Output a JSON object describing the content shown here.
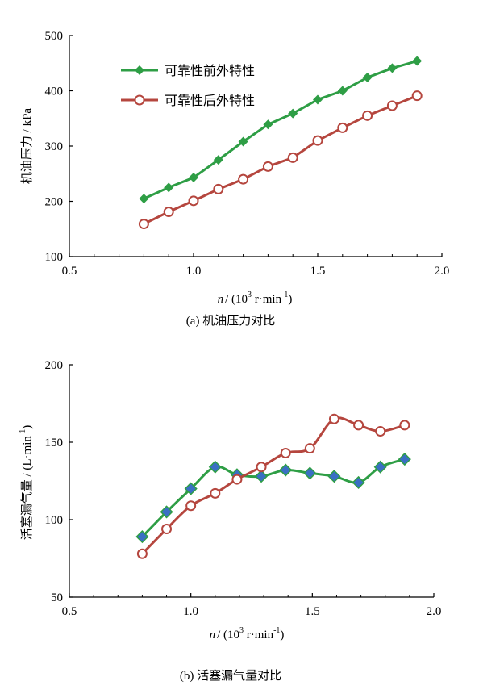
{
  "colors": {
    "green": "#2e9e45",
    "red": "#b5463e",
    "blue": "#3a6fc4"
  },
  "chart_data": [
    {
      "type": "line",
      "caption": "(a)  机油压力对比",
      "ylabel": "机油压力 / kPa",
      "xlabel": {
        "n": "n",
        "prefix": "/ (10",
        "sup1": "3",
        "mid": " r·min",
        "sup2": "-1",
        "suffix": ")"
      },
      "xlim": [
        0.5,
        2.0
      ],
      "ylim": [
        100,
        500
      ],
      "xticks": [
        0.5,
        1.0,
        1.5,
        2.0
      ],
      "xtick_labels": [
        "0.5",
        "1.0",
        "1.5",
        "2.0"
      ],
      "yticks": [
        100,
        200,
        300,
        400,
        500
      ],
      "ytick_labels": [
        "100",
        "200",
        "300",
        "400",
        "500"
      ],
      "legend_position": "top-left",
      "series": [
        {
          "name": "可靠性前外特性",
          "color": "#2e9e45",
          "marker": "filled-diamond",
          "smooth": false,
          "x": [
            0.8,
            0.9,
            1.0,
            1.1,
            1.2,
            1.3,
            1.4,
            1.5,
            1.6,
            1.7,
            1.8,
            1.9
          ],
          "y": [
            205,
            225,
            243,
            275,
            308,
            339,
            359,
            384,
            400,
            424,
            441,
            454
          ]
        },
        {
          "name": "可靠性后外特性",
          "color": "#b5463e",
          "marker": "open-circle",
          "smooth": false,
          "x": [
            0.8,
            0.9,
            1.0,
            1.1,
            1.2,
            1.3,
            1.4,
            1.5,
            1.6,
            1.7,
            1.8,
            1.9
          ],
          "y": [
            159,
            181,
            201,
            222,
            240,
            263,
            279,
            310,
            333,
            355,
            373,
            391
          ]
        }
      ]
    },
    {
      "type": "line",
      "caption": "(b)  活塞漏气量对比",
      "ylabel": {
        "main": "活塞漏气量 / (L·min",
        "sup": "-1",
        "suffix": ")"
      },
      "xlabel": {
        "n": "n",
        "prefix": "/ (10",
        "sup1": "3",
        "mid": " r·min",
        "sup2": "-1",
        "suffix": ")"
      },
      "xlim": [
        0.5,
        2.0
      ],
      "ylim": [
        50,
        200
      ],
      "xticks": [
        0.5,
        1.0,
        1.5,
        2.0
      ],
      "xtick_labels": [
        "0.5",
        "1.0",
        "1.5",
        "2.0"
      ],
      "yticks": [
        50,
        100,
        150,
        200
      ],
      "ytick_labels": [
        "50",
        "100",
        "150",
        "200"
      ],
      "series": [
        {
          "color": "#2e9e45",
          "marker": "blue-diamond",
          "smooth": true,
          "x": [
            0.8,
            0.9,
            1.0,
            1.1,
            1.19,
            1.29,
            1.39,
            1.49,
            1.59,
            1.69,
            1.78,
            1.88
          ],
          "y": [
            89,
            105,
            120,
            134,
            129,
            128,
            132,
            130,
            128,
            124,
            134,
            139
          ]
        },
        {
          "color": "#b5463e",
          "marker": "open-circle",
          "smooth": true,
          "x": [
            0.8,
            0.9,
            1.0,
            1.1,
            1.19,
            1.29,
            1.39,
            1.49,
            1.59,
            1.69,
            1.78,
            1.88
          ],
          "y": [
            78,
            94,
            109,
            117,
            126,
            134,
            143,
            146,
            165,
            161,
            157,
            161
          ]
        }
      ]
    }
  ]
}
